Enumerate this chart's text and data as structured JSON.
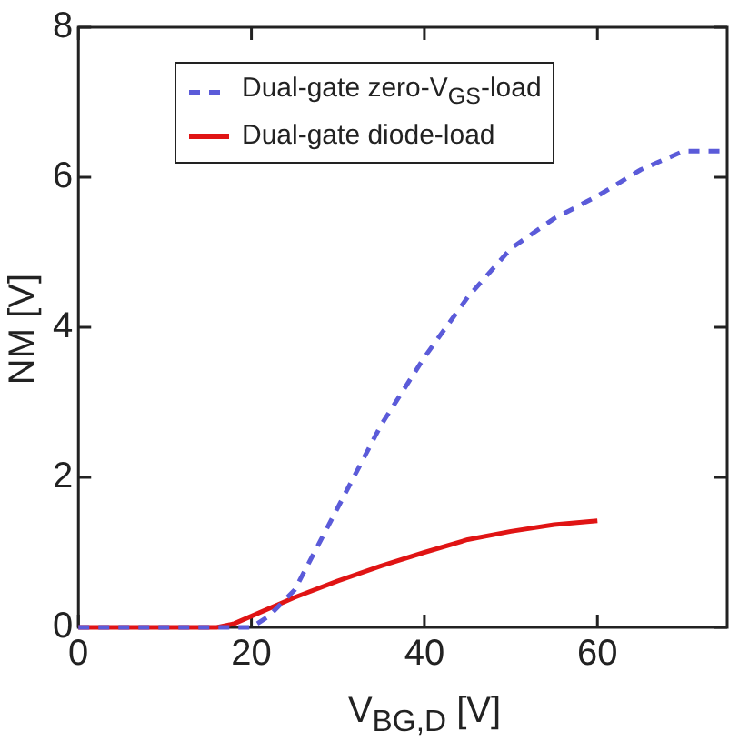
{
  "chart_data": {
    "type": "line",
    "xlabel": "V$_{BG,D}$ [V]",
    "ylabel": "NM [V]",
    "xlim": [
      0,
      75
    ],
    "xticks": [
      0,
      20,
      40,
      60
    ],
    "ylim": [
      0,
      8
    ],
    "yticks": [
      0,
      2,
      4,
      6,
      8
    ],
    "grid": false,
    "legend": "top left",
    "marker": "none",
    "series": [
      {
        "name": "Dual-gate zero-V$_{GS}$-load",
        "color": "#5b5bd9",
        "line_style": "dashed",
        "x": [
          0,
          5,
          10,
          15,
          20,
          22,
          25,
          30,
          35,
          40,
          45,
          50,
          55,
          60,
          65,
          70,
          75
        ],
        "values": [
          0,
          0,
          0,
          0,
          0,
          0.15,
          0.5,
          1.6,
          2.7,
          3.6,
          4.4,
          5.05,
          5.45,
          5.75,
          6.1,
          6.35,
          6.35
        ]
      },
      {
        "name": "Dual-gate diode-load",
        "color": "#e01414",
        "line_style": "solid",
        "x": [
          0,
          5,
          10,
          16,
          18,
          20,
          25,
          30,
          35,
          40,
          45,
          50,
          55,
          60
        ],
        "values": [
          0,
          0,
          0,
          0,
          0.05,
          0.15,
          0.4,
          0.62,
          0.82,
          1.0,
          1.17,
          1.28,
          1.37,
          1.42
        ]
      }
    ]
  }
}
